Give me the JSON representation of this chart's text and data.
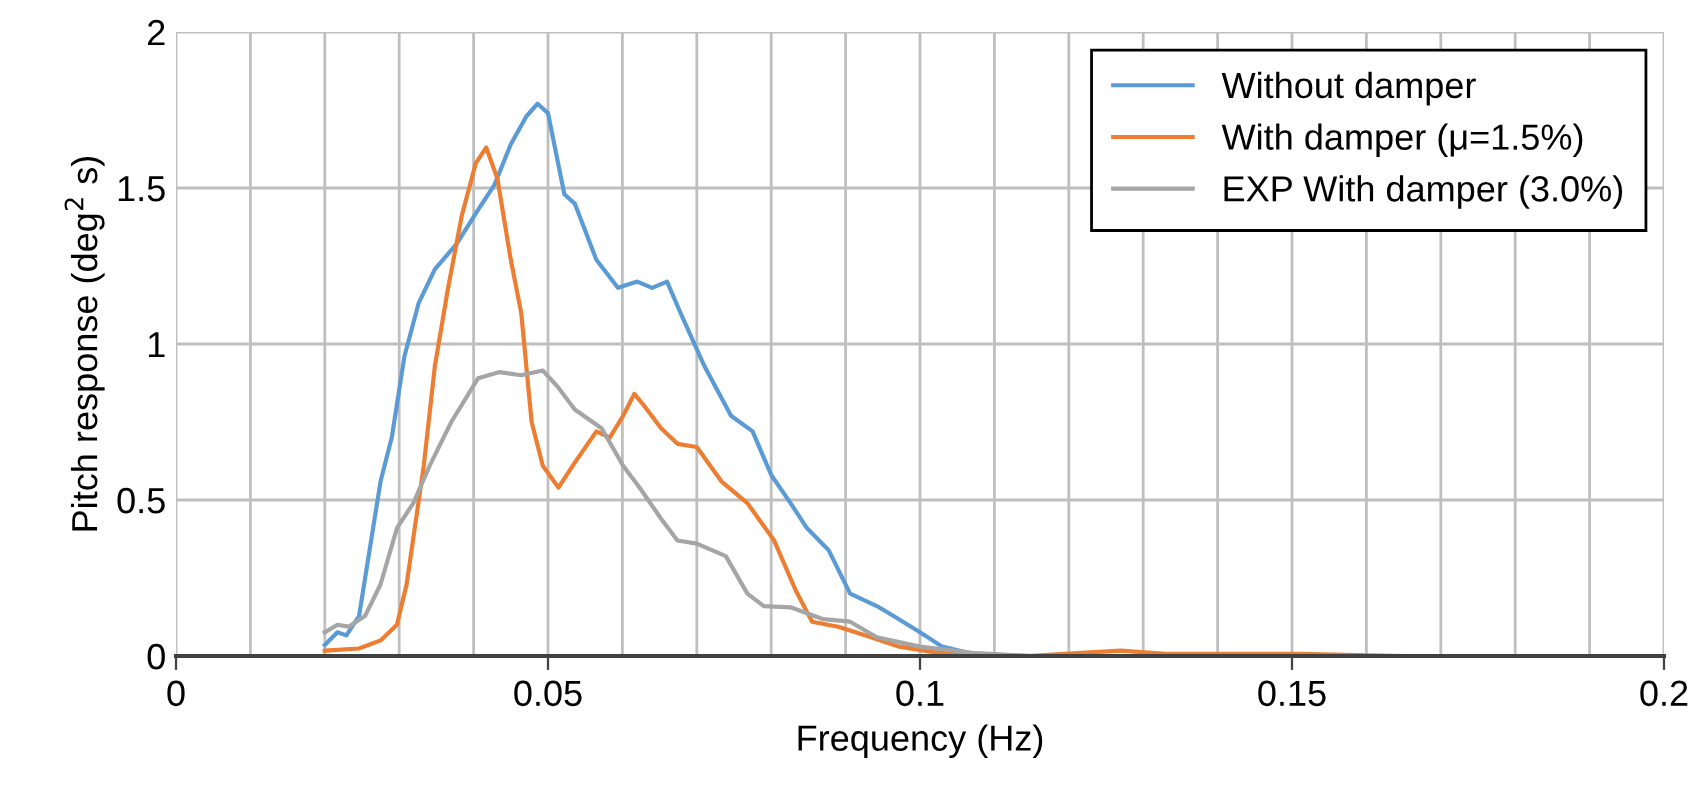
{
  "chart_data": {
    "type": "line",
    "xlabel": "Frequency (Hz)",
    "ylabel": "Pitch response (deg$^{2}$ s)",
    "xlim": [
      0,
      0.2
    ],
    "ylim": [
      0,
      2
    ],
    "xticks": [
      0,
      {
        "value": 0.01,
        "label": null
      },
      {
        "value": 0.02,
        "label": null
      },
      {
        "value": 0.03,
        "label": null
      },
      {
        "value": 0.04,
        "label": null
      },
      0.05,
      {
        "value": 0.06,
        "label": null
      },
      {
        "value": 0.07,
        "label": null
      },
      {
        "value": 0.08,
        "label": null
      },
      {
        "value": 0.09,
        "label": null
      },
      0.1,
      {
        "value": 0.11,
        "label": null
      },
      {
        "value": 0.12,
        "label": null
      },
      {
        "value": 0.13,
        "label": null
      },
      {
        "value": 0.14,
        "label": null
      },
      0.15,
      {
        "value": 0.16,
        "label": null
      },
      {
        "value": 0.17,
        "label": null
      },
      {
        "value": 0.18,
        "label": null
      },
      {
        "value": 0.19,
        "label": null
      },
      0.2
    ],
    "yticks": [
      0,
      0.5,
      1,
      1.5,
      2
    ],
    "grid": true,
    "legend": "top right",
    "marker": "none",
    "line_style": "solid",
    "series": [
      {
        "name": "Without damper",
        "color": "#5b9bd5",
        "x": [
          0.02,
          0.0217,
          0.0229,
          0.0246,
          0.0275,
          0.029,
          0.0307,
          0.0326,
          0.0348,
          0.0377,
          0.0406,
          0.0428,
          0.045,
          0.0471,
          0.0486,
          0.05,
          0.0522,
          0.0536,
          0.0565,
          0.0594,
          0.062,
          0.064,
          0.066,
          0.0678,
          0.071,
          0.0746,
          0.0775,
          0.08,
          0.0826,
          0.0848,
          0.0877,
          0.0906,
          0.0942,
          0.097,
          0.1,
          0.103,
          0.107,
          0.115,
          0.136,
          0.2
        ],
        "values": [
          0.035,
          0.076,
          0.066,
          0.128,
          0.56,
          0.7,
          0.96,
          1.13,
          1.24,
          1.32,
          1.43,
          1.51,
          1.64,
          1.73,
          1.77,
          1.74,
          1.48,
          1.45,
          1.27,
          1.18,
          1.2,
          1.18,
          1.2,
          1.1,
          0.93,
          0.77,
          0.72,
          0.58,
          0.49,
          0.41,
          0.34,
          0.2,
          0.16,
          0.12,
          0.076,
          0.03,
          0.007,
          0,
          0,
          0
        ]
      },
      {
        "name": "With damper (μ=1.5%)",
        "color": "#ed7d31",
        "x": [
          0.02,
          0.0246,
          0.0275,
          0.0297,
          0.031,
          0.0333,
          0.0348,
          0.0365,
          0.0384,
          0.0403,
          0.0417,
          0.0432,
          0.045,
          0.0464,
          0.0478,
          0.0493,
          0.0514,
          0.0536,
          0.0565,
          0.0583,
          0.0601,
          0.0616,
          0.063,
          0.0652,
          0.0674,
          0.07,
          0.0733,
          0.0768,
          0.0804,
          0.0833,
          0.0855,
          0.089,
          0.0927,
          0.097,
          0.1014,
          0.107,
          0.1145,
          0.1217,
          0.127,
          0.133,
          0.151,
          0.165,
          0.2
        ],
        "values": [
          0.017,
          0.024,
          0.05,
          0.1,
          0.23,
          0.61,
          0.93,
          1.17,
          1.41,
          1.58,
          1.63,
          1.53,
          1.27,
          1.1,
          0.75,
          0.61,
          0.54,
          0.62,
          0.72,
          0.7,
          0.77,
          0.84,
          0.8,
          0.73,
          0.68,
          0.67,
          0.56,
          0.49,
          0.37,
          0.21,
          0.11,
          0.094,
          0.066,
          0.031,
          0.014,
          0,
          0,
          0.01,
          0.017,
          0.007,
          0.007,
          0,
          0
        ]
      },
      {
        "name": "EXP With damper (3.0%)",
        "color": "#a5a5a5",
        "x": [
          0.02,
          0.0217,
          0.0232,
          0.0254,
          0.0275,
          0.0297,
          0.0319,
          0.0341,
          0.037,
          0.0406,
          0.0435,
          0.0464,
          0.0493,
          0.0514,
          0.0536,
          0.0572,
          0.0601,
          0.0623,
          0.0652,
          0.0674,
          0.07,
          0.0739,
          0.0768,
          0.079,
          0.0826,
          0.087,
          0.0906,
          0.0942,
          0.1,
          0.107,
          0.1145,
          0.2
        ],
        "values": [
          0.076,
          0.1,
          0.094,
          0.128,
          0.23,
          0.41,
          0.49,
          0.61,
          0.75,
          0.89,
          0.91,
          0.9,
          0.915,
          0.86,
          0.79,
          0.73,
          0.61,
          0.54,
          0.44,
          0.37,
          0.36,
          0.32,
          0.2,
          0.16,
          0.156,
          0.118,
          0.11,
          0.06,
          0.03,
          0.01,
          0,
          0
        ]
      }
    ]
  }
}
